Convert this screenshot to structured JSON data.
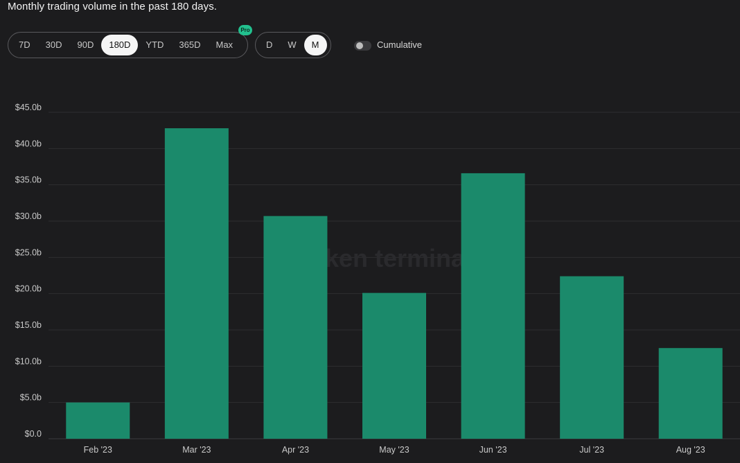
{
  "header": {
    "subtitle": "Monthly trading volume in the past 180 days."
  },
  "controls": {
    "ranges": [
      "7D",
      "30D",
      "90D",
      "180D",
      "YTD",
      "365D",
      "Max"
    ],
    "active_range": "180D",
    "pro_badge": "Pro",
    "granularity": [
      "D",
      "W",
      "M"
    ],
    "active_granularity": "M",
    "cumulative_label": "Cumulative",
    "cumulative_on": false
  },
  "watermark": "token terminal_",
  "chart_data": {
    "type": "bar",
    "title": "",
    "xlabel": "",
    "ylabel": "",
    "categories": [
      "Feb '23",
      "Mar '23",
      "Apr '23",
      "May '23",
      "Jun '23",
      "Jul '23",
      "Aug '23"
    ],
    "values": [
      5.0,
      42.8,
      30.7,
      20.1,
      36.6,
      22.4,
      12.5
    ],
    "unit_prefix": "$",
    "unit_suffix": "b",
    "ylim": [
      0,
      45
    ],
    "yticks": [
      "$0.0",
      "$5.0b",
      "$10.0b",
      "$15.0b",
      "$20.0b",
      "$25.0b",
      "$30.0b",
      "$35.0b",
      "$40.0b",
      "$45.0b"
    ],
    "grid": true,
    "bar_color": "#1b8a6b",
    "legend": "none"
  }
}
